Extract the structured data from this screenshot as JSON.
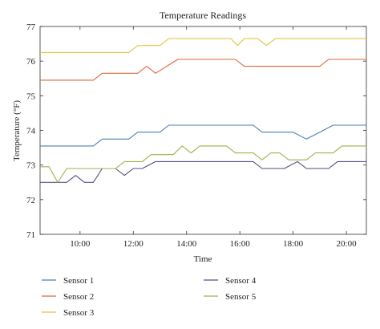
{
  "chart_data": {
    "type": "line",
    "title": "Temperature Readings",
    "xlabel": "Time",
    "ylabel": "Temperature (°F)",
    "xlim": [
      "08:30",
      "20:45"
    ],
    "ylim": [
      71,
      77
    ],
    "grid": false,
    "legend": "bottom, two columns",
    "x_ticks": [
      "10:00",
      "12:00",
      "14:00",
      "16:00",
      "18:00",
      "20:00"
    ],
    "y_ticks": [
      "71",
      "72",
      "73",
      "74",
      "75",
      "76",
      "77"
    ],
    "series": [
      {
        "name": "Sensor 1",
        "color": "#4a7fb5",
        "points": [
          [
            "08:30",
            73.55
          ],
          [
            "10:30",
            73.55
          ],
          [
            "10:50",
            73.75
          ],
          [
            "11:50",
            73.75
          ],
          [
            "12:10",
            73.95
          ],
          [
            "13:00",
            73.95
          ],
          [
            "13:20",
            74.15
          ],
          [
            "15:50",
            74.15
          ],
          [
            "16:30",
            74.15
          ],
          [
            "16:50",
            73.95
          ],
          [
            "18:00",
            73.95
          ],
          [
            "18:30",
            73.75
          ],
          [
            "19:00",
            73.95
          ],
          [
            "19:30",
            74.15
          ],
          [
            "20:45",
            74.15
          ]
        ]
      },
      {
        "name": "Sensor 2",
        "color": "#d9683a",
        "points": [
          [
            "08:30",
            75.45
          ],
          [
            "10:30",
            75.45
          ],
          [
            "10:50",
            75.65
          ],
          [
            "12:10",
            75.65
          ],
          [
            "12:30",
            75.85
          ],
          [
            "12:50",
            75.65
          ],
          [
            "13:40",
            76.05
          ],
          [
            "15:50",
            76.05
          ],
          [
            "16:10",
            75.85
          ],
          [
            "19:00",
            75.85
          ],
          [
            "19:20",
            76.05
          ],
          [
            "20:45",
            76.05
          ]
        ]
      },
      {
        "name": "Sensor 3",
        "color": "#e8c340",
        "points": [
          [
            "08:30",
            76.25
          ],
          [
            "11:50",
            76.25
          ],
          [
            "12:10",
            76.45
          ],
          [
            "13:00",
            76.45
          ],
          [
            "13:20",
            76.65
          ],
          [
            "15:40",
            76.65
          ],
          [
            "15:55",
            76.45
          ],
          [
            "16:10",
            76.65
          ],
          [
            "16:40",
            76.65
          ],
          [
            "17:00",
            76.45
          ],
          [
            "17:20",
            76.65
          ],
          [
            "20:45",
            76.65
          ]
        ]
      },
      {
        "name": "Sensor 4",
        "color": "#5a4a82",
        "points": [
          [
            "08:30",
            72.5
          ],
          [
            "09:30",
            72.5
          ],
          [
            "09:50",
            72.7
          ],
          [
            "10:10",
            72.5
          ],
          [
            "10:30",
            72.5
          ],
          [
            "10:50",
            72.9
          ],
          [
            "11:20",
            72.9
          ],
          [
            "11:40",
            72.7
          ],
          [
            "12:00",
            72.9
          ],
          [
            "12:20",
            72.9
          ],
          [
            "12:50",
            73.1
          ],
          [
            "16:30",
            73.1
          ],
          [
            "16:50",
            72.9
          ],
          [
            "17:40",
            72.9
          ],
          [
            "18:10",
            73.1
          ],
          [
            "18:30",
            72.9
          ],
          [
            "19:20",
            72.9
          ],
          [
            "19:40",
            73.1
          ],
          [
            "20:45",
            73.1
          ]
        ]
      },
      {
        "name": "Sensor 5",
        "color": "#9cb24a",
        "points": [
          [
            "08:30",
            72.95
          ],
          [
            "08:50",
            72.95
          ],
          [
            "09:10",
            72.5
          ],
          [
            "09:30",
            72.9
          ],
          [
            "11:20",
            72.9
          ],
          [
            "11:40",
            73.1
          ],
          [
            "12:20",
            73.1
          ],
          [
            "12:40",
            73.3
          ],
          [
            "13:30",
            73.3
          ],
          [
            "13:50",
            73.55
          ],
          [
            "14:10",
            73.35
          ],
          [
            "14:30",
            73.55
          ],
          [
            "15:30",
            73.55
          ],
          [
            "15:50",
            73.35
          ],
          [
            "16:30",
            73.35
          ],
          [
            "16:50",
            73.15
          ],
          [
            "17:10",
            73.35
          ],
          [
            "17:30",
            73.35
          ],
          [
            "17:50",
            73.15
          ],
          [
            "18:30",
            73.15
          ],
          [
            "18:50",
            73.35
          ],
          [
            "19:30",
            73.35
          ],
          [
            "19:50",
            73.55
          ],
          [
            "20:45",
            73.55
          ]
        ]
      }
    ]
  }
}
